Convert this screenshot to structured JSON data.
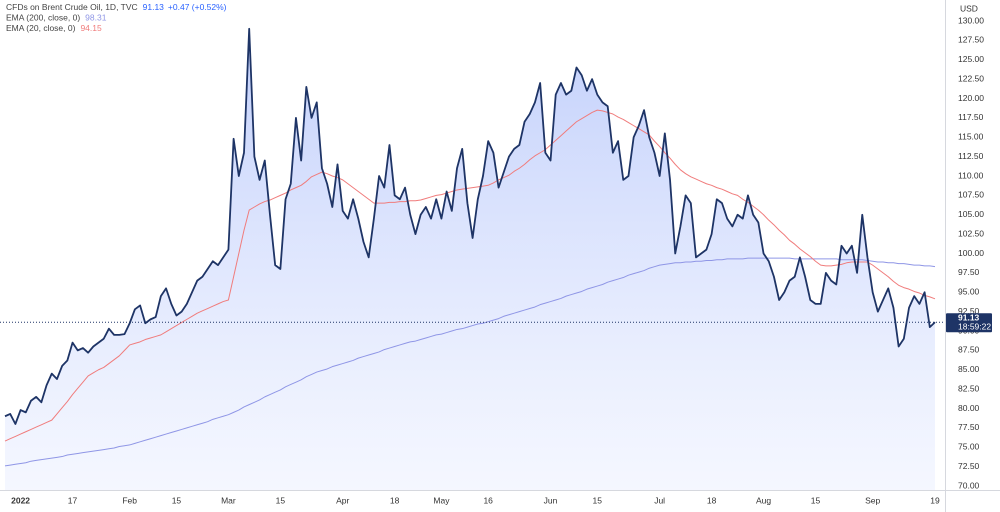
{
  "chart_data": {
    "type": "line",
    "title": "CFDs on Brent Crude Oil, 1D, TVC",
    "currency": "USD",
    "categories": [
      null,
      null,
      null,
      "2022",
      null,
      null,
      null,
      null,
      null,
      null,
      null,
      null,
      null,
      "17",
      null,
      null,
      null,
      null,
      null,
      null,
      null,
      null,
      null,
      null,
      "Feb",
      null,
      null,
      null,
      null,
      null,
      null,
      null,
      null,
      "15",
      null,
      null,
      null,
      null,
      null,
      null,
      null,
      null,
      null,
      "Mar",
      null,
      null,
      null,
      null,
      null,
      null,
      null,
      null,
      null,
      "15",
      null,
      null,
      null,
      null,
      null,
      null,
      null,
      null,
      null,
      null,
      null,
      "Apr",
      null,
      null,
      null,
      null,
      null,
      null,
      null,
      null,
      null,
      "18",
      null,
      null,
      null,
      null,
      null,
      null,
      null,
      null,
      "May",
      null,
      null,
      null,
      null,
      null,
      null,
      null,
      null,
      "16",
      null,
      null,
      null,
      null,
      null,
      null,
      null,
      null,
      null,
      null,
      null,
      "Jun",
      null,
      null,
      null,
      null,
      null,
      null,
      null,
      null,
      "15",
      null,
      null,
      null,
      null,
      null,
      null,
      null,
      null,
      null,
      null,
      null,
      "Jul",
      null,
      null,
      null,
      null,
      null,
      null,
      null,
      null,
      null,
      "18",
      null,
      null,
      null,
      null,
      null,
      null,
      null,
      null,
      null,
      "Aug",
      null,
      null,
      null,
      null,
      null,
      null,
      null,
      null,
      null,
      "15",
      null,
      null,
      null,
      null,
      null,
      null,
      null,
      null,
      null,
      null,
      "Sep",
      null,
      null,
      null,
      null,
      null,
      null,
      null,
      null,
      null,
      null,
      null,
      "19"
    ],
    "series": [
      {
        "name": "CFDs on Brent Crude Oil, 1D, TVC",
        "legend_value": "91.13",
        "change": "+0.47 (+0.52%)",
        "color": "#1e3466",
        "area": true,
        "width": 1.8,
        "values": [
          79.0,
          79.3,
          78.0,
          79.8,
          79.5,
          81.0,
          81.5,
          80.8,
          83.0,
          84.5,
          83.8,
          85.5,
          86.2,
          88.5,
          87.5,
          87.8,
          87.2,
          88.0,
          88.5,
          89.0,
          90.3,
          89.5,
          89.5,
          89.6,
          91.0,
          92.8,
          93.3,
          91.0,
          91.5,
          91.8,
          94.5,
          95.5,
          93.5,
          92.0,
          92.5,
          93.5,
          95.0,
          96.5,
          97.0,
          98.0,
          99.0,
          98.5,
          99.5,
          100.5,
          114.8,
          110.0,
          113.0,
          129.0,
          112.5,
          109.5,
          112.0,
          105.0,
          98.5,
          98.0,
          107.0,
          109.0,
          117.5,
          112.0,
          121.5,
          117.5,
          119.5,
          111.0,
          109.0,
          106.0,
          111.5,
          105.5,
          104.5,
          107.0,
          104.5,
          101.5,
          99.5,
          104.5,
          110.0,
          108.5,
          114.0,
          107.5,
          107.0,
          108.5,
          105.0,
          102.5,
          105.0,
          106.0,
          104.5,
          107.0,
          104.5,
          108.0,
          105.5,
          111.0,
          113.5,
          106.5,
          102.0,
          107.0,
          110.0,
          114.5,
          113.0,
          108.5,
          110.5,
          112.5,
          113.5,
          114.0,
          117.0,
          118.0,
          119.5,
          122.0,
          113.0,
          112.0,
          120.5,
          122.0,
          120.5,
          121.0,
          124.0,
          123.0,
          121.0,
          122.5,
          120.5,
          119.5,
          119.0,
          113.0,
          114.5,
          109.5,
          110.0,
          115.0,
          116.5,
          118.5,
          115.0,
          113.0,
          110.0,
          115.5,
          109.5,
          100.0,
          103.5,
          107.5,
          106.5,
          99.5,
          100.0,
          100.5,
          102.5,
          107.0,
          106.5,
          104.5,
          103.5,
          105.0,
          104.5,
          107.5,
          105.0,
          104.0,
          100.0,
          99.0,
          97.0,
          94.0,
          95.0,
          96.5,
          97.0,
          99.5,
          97.0,
          94.0,
          93.5,
          93.5,
          97.5,
          96.5,
          96.0,
          101.0,
          100.0,
          101.0,
          97.5,
          105.0,
          99.5,
          95.0,
          92.5,
          94.0,
          95.5,
          93.0,
          88.0,
          89.0,
          93.0,
          94.5,
          93.5,
          95.0,
          90.5,
          91.13
        ]
      },
      {
        "name": "EMA (200, close, 0)",
        "legend_value": "98.31",
        "color": "#8f96e6",
        "width": 1,
        "values": [
          72.6,
          72.7,
          72.8,
          72.9,
          73.0,
          73.2,
          73.3,
          73.4,
          73.5,
          73.6,
          73.7,
          73.8,
          74.0,
          74.1,
          74.2,
          74.3,
          74.4,
          74.5,
          74.6,
          74.7,
          74.8,
          74.9,
          75.1,
          75.2,
          75.3,
          75.5,
          75.7,
          75.9,
          76.1,
          76.3,
          76.5,
          76.7,
          76.9,
          77.1,
          77.3,
          77.5,
          77.7,
          77.9,
          78.1,
          78.3,
          78.6,
          78.8,
          79.0,
          79.2,
          79.5,
          79.8,
          80.2,
          80.5,
          80.8,
          81.1,
          81.5,
          81.8,
          82.1,
          82.4,
          82.8,
          83.1,
          83.4,
          83.7,
          84.1,
          84.4,
          84.7,
          84.9,
          85.1,
          85.4,
          85.6,
          85.8,
          86.0,
          86.2,
          86.5,
          86.7,
          86.9,
          87.1,
          87.3,
          87.6,
          87.8,
          88.0,
          88.2,
          88.4,
          88.6,
          88.7,
          88.9,
          89.1,
          89.3,
          89.5,
          89.6,
          89.8,
          90.0,
          90.2,
          90.3,
          90.5,
          90.7,
          90.9,
          91.0,
          91.2,
          91.4,
          91.6,
          91.9,
          92.1,
          92.3,
          92.5,
          92.7,
          92.9,
          93.1,
          93.4,
          93.6,
          93.8,
          94.0,
          94.2,
          94.5,
          94.7,
          94.9,
          95.1,
          95.4,
          95.6,
          95.8,
          96.0,
          96.3,
          96.5,
          96.7,
          96.9,
          97.2,
          97.4,
          97.6,
          97.8,
          98.1,
          98.3,
          98.5,
          98.6,
          98.7,
          98.8,
          98.8,
          98.9,
          98.9,
          99.0,
          99.0,
          99.1,
          99.1,
          99.2,
          99.2,
          99.3,
          99.3,
          99.3,
          99.3,
          99.4,
          99.4,
          99.4,
          99.4,
          99.4,
          99.4,
          99.4,
          99.4,
          99.4,
          99.3,
          99.3,
          99.3,
          99.3,
          99.3,
          99.3,
          99.3,
          99.3,
          99.3,
          99.2,
          99.2,
          99.2,
          99.2,
          99.2,
          99.1,
          99.0,
          98.9,
          98.9,
          98.8,
          98.8,
          98.7,
          98.7,
          98.6,
          98.5,
          98.5,
          98.4,
          98.4,
          98.31
        ]
      },
      {
        "name": "EMA (20, close, 0)",
        "legend_value": "94.15",
        "color": "#f07c7c",
        "width": 1,
        "values": [
          75.8,
          76.1,
          76.4,
          76.7,
          77.0,
          77.3,
          77.6,
          77.9,
          78.2,
          78.5,
          79.3,
          80.1,
          80.9,
          81.8,
          82.6,
          83.4,
          84.2,
          84.6,
          85.0,
          85.3,
          85.8,
          86.3,
          86.8,
          87.5,
          88.2,
          88.4,
          88.6,
          88.9,
          89.1,
          89.3,
          89.5,
          89.9,
          90.3,
          90.7,
          91.1,
          91.5,
          91.9,
          92.3,
          92.6,
          92.9,
          93.2,
          93.5,
          93.8,
          94.0,
          97.0,
          100.0,
          103.0,
          105.6,
          106.0,
          106.4,
          106.7,
          106.9,
          107.2,
          107.5,
          107.8,
          108.2,
          108.5,
          108.8,
          109.3,
          109.9,
          110.2,
          110.5,
          110.3,
          110.0,
          109.8,
          109.5,
          109.0,
          108.5,
          108.0,
          107.5,
          107.0,
          106.5,
          106.5,
          106.5,
          106.6,
          106.6,
          106.7,
          106.7,
          106.8,
          106.8,
          106.9,
          107.1,
          107.3,
          107.5,
          107.6,
          107.8,
          108.0,
          108.2,
          108.3,
          108.4,
          108.5,
          108.6,
          108.7,
          108.8,
          109.1,
          109.5,
          109.8,
          110.1,
          110.6,
          111.0,
          111.5,
          112.1,
          112.6,
          113.0,
          113.4,
          114.0,
          114.6,
          115.2,
          115.8,
          116.4,
          117.0,
          117.4,
          117.8,
          118.2,
          118.5,
          118.4,
          118.2,
          118.0,
          117.6,
          117.3,
          116.9,
          116.5,
          116.1,
          115.7,
          115.3,
          114.5,
          113.8,
          113.0,
          112.3,
          111.5,
          110.8,
          110.3,
          109.9,
          109.6,
          109.3,
          109.0,
          108.8,
          108.5,
          108.3,
          108.0,
          107.7,
          107.5,
          107.0,
          106.6,
          106.1,
          105.6,
          105.0,
          104.3,
          103.7,
          103.0,
          102.4,
          101.7,
          101.2,
          100.6,
          100.1,
          99.6,
          99.0,
          98.5,
          98.4,
          98.4,
          98.5,
          98.6,
          98.8,
          98.9,
          98.9,
          98.9,
          98.9,
          98.5,
          98.0,
          97.5,
          97.0,
          96.4,
          95.9,
          95.6,
          95.4,
          95.1,
          94.9,
          94.6,
          94.4,
          94.15
        ]
      }
    ],
    "price_label": {
      "value": "91.13",
      "time": "18:59:22",
      "color": "#1e3466"
    },
    "ylim": [
      70,
      130
    ],
    "yticks": [
      {
        "value": 70,
        "label": "70.00"
      },
      {
        "value": 72.5,
        "label": "72.50"
      },
      {
        "value": 75,
        "label": "75.00"
      },
      {
        "value": 77.5,
        "label": "77.50"
      },
      {
        "value": 80,
        "label": "80.00"
      },
      {
        "value": 82.5,
        "label": "82.50"
      },
      {
        "value": 85,
        "label": "85.00"
      },
      {
        "value": 87.5,
        "label": "87.50"
      },
      {
        "value": 90,
        "label": "90.00"
      },
      {
        "value": 92.5,
        "label": "92.50"
      },
      {
        "value": 95,
        "label": "95.00"
      },
      {
        "value": 97.5,
        "label": "97.50"
      },
      {
        "value": 100,
        "label": "100.00"
      },
      {
        "value": 102.5,
        "label": "102.50"
      },
      {
        "value": 105,
        "label": "105.00"
      },
      {
        "value": 107.5,
        "label": "107.50"
      },
      {
        "value": 110,
        "label": "110.00"
      },
      {
        "value": 112.5,
        "label": "112.50"
      },
      {
        "value": 115,
        "label": "115.00"
      },
      {
        "value": 117.5,
        "label": "117.50"
      },
      {
        "value": 120,
        "label": "120.00"
      },
      {
        "value": 122.5,
        "label": "122.50"
      },
      {
        "value": 125,
        "label": "125.00"
      },
      {
        "value": 127.5,
        "label": "127.50"
      },
      {
        "value": 130,
        "label": "130.00"
      }
    ],
    "grid": false
  }
}
